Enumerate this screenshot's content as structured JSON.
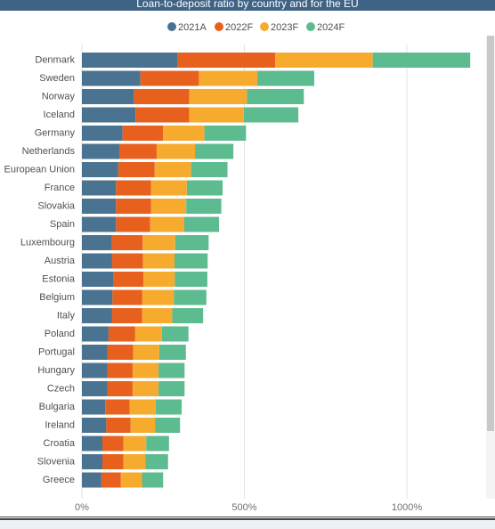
{
  "window": {
    "title": "Loan-to-deposit ratio by country and for the EU"
  },
  "colors": {
    "title_bar": "#3f6385",
    "gridline": "#e3e3e3"
  },
  "chart_data": {
    "type": "bar",
    "orientation": "horizontal",
    "stacked": true,
    "title": "Loan-to-deposit ratio by country and for the EU",
    "xlabel": "",
    "ylabel": "",
    "xlim": [
      0,
      1240
    ],
    "x_ticks": [
      0,
      500,
      1000
    ],
    "x_tick_labels": [
      "0%",
      "500%",
      "1000%"
    ],
    "grid": "vertical",
    "legend_position": "top-center",
    "categories": [
      "Denmark",
      "Sweden",
      "Norway",
      "Iceland",
      "Germany",
      "Netherlands",
      "European Union",
      "France",
      "Slovakia",
      "Spain",
      "Luxembourg",
      "Austria",
      "Estonia",
      "Belgium",
      "Italy",
      "Poland",
      "Portugal",
      "Hungary",
      "Czech",
      "Bulgaria",
      "Ireland",
      "Croatia",
      "Slovenia",
      "Greece"
    ],
    "series": [
      {
        "name": "2021A",
        "color": "#4a7391",
        "values": [
          295,
          180,
          160,
          165,
          125,
          115,
          112,
          105,
          105,
          105,
          92,
          93,
          97,
          94,
          93,
          82,
          78,
          78,
          78,
          72,
          75,
          63,
          63,
          60
        ]
      },
      {
        "name": "2022F",
        "color": "#e8601e",
        "values": [
          300,
          180,
          170,
          165,
          125,
          115,
          112,
          108,
          108,
          105,
          95,
          95,
          92,
          92,
          92,
          82,
          80,
          78,
          78,
          75,
          75,
          65,
          65,
          60
        ]
      },
      {
        "name": "2023F",
        "color": "#f7ab2e",
        "values": [
          300,
          180,
          178,
          168,
          127,
          118,
          112,
          110,
          108,
          105,
          100,
          97,
          97,
          97,
          93,
          82,
          80,
          80,
          80,
          80,
          75,
          70,
          67,
          65
        ]
      },
      {
        "name": "2024F",
        "color": "#5cbb8f",
        "values": [
          300,
          175,
          175,
          168,
          128,
          118,
          112,
          110,
          108,
          107,
          103,
          102,
          100,
          100,
          95,
          82,
          82,
          80,
          80,
          80,
          77,
          70,
          70,
          65
        ]
      }
    ]
  }
}
